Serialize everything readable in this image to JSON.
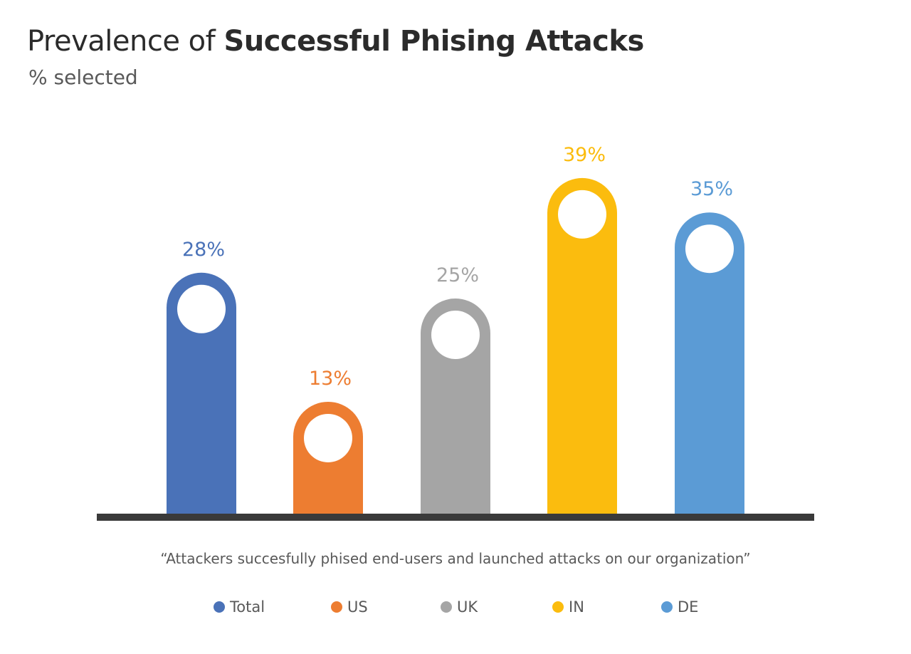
{
  "title": {
    "prefix": "Prevalence of ",
    "bold": "Successful Phising Attacks"
  },
  "subtitle": "% selected",
  "caption": "“Attackers succesfully phised end-users and launched attacks on our organization”",
  "chart_data": {
    "type": "bar",
    "title": "Prevalence of Successful Phising Attacks",
    "subtitle": "% selected",
    "categories": [
      "Total",
      "US",
      "UK",
      "IN",
      "DE"
    ],
    "values": [
      28,
      13,
      25,
      39,
      35
    ],
    "value_labels": [
      "28%",
      "13%",
      "25%",
      "39%",
      "35%"
    ],
    "colors": [
      "#4a72b8",
      "#ed7d31",
      "#a5a5a5",
      "#fbbc0e",
      "#5b9bd5"
    ],
    "grid": false,
    "legend_position": "bottom",
    "xlabel": "",
    "ylabel": ""
  },
  "legend": [
    {
      "label": "Total",
      "color": "#4a72b8"
    },
    {
      "label": "US",
      "color": "#ed7d31"
    },
    {
      "label": "UK",
      "color": "#a5a5a5"
    },
    {
      "label": "IN",
      "color": "#fbbc0e"
    },
    {
      "label": "DE",
      "color": "#5b9bd5"
    }
  ]
}
